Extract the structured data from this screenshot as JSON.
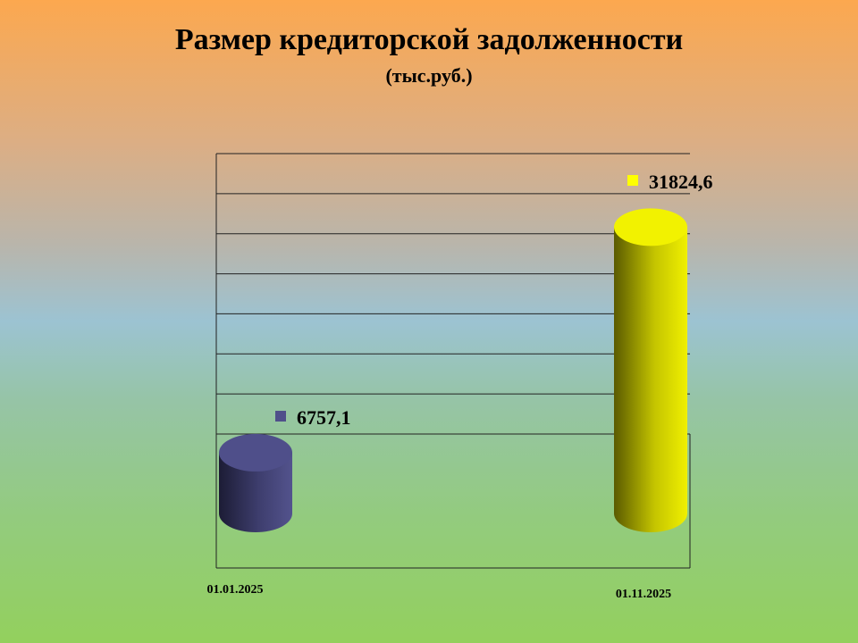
{
  "chart_data": {
    "type": "bar",
    "title": "Размер кредиторской задолженности",
    "subtitle": "(тыс.руб.)",
    "categories": [
      "01.01.2025",
      "01.11.2025"
    ],
    "values": [
      6757.1,
      31824.6
    ],
    "value_labels": [
      "6757,1",
      "31824,6"
    ],
    "bar_colors": [
      "#4f4f8a",
      "#f2f200"
    ],
    "ylim": [
      0,
      40000
    ],
    "grid": true,
    "shape": "cylinder-3d"
  }
}
